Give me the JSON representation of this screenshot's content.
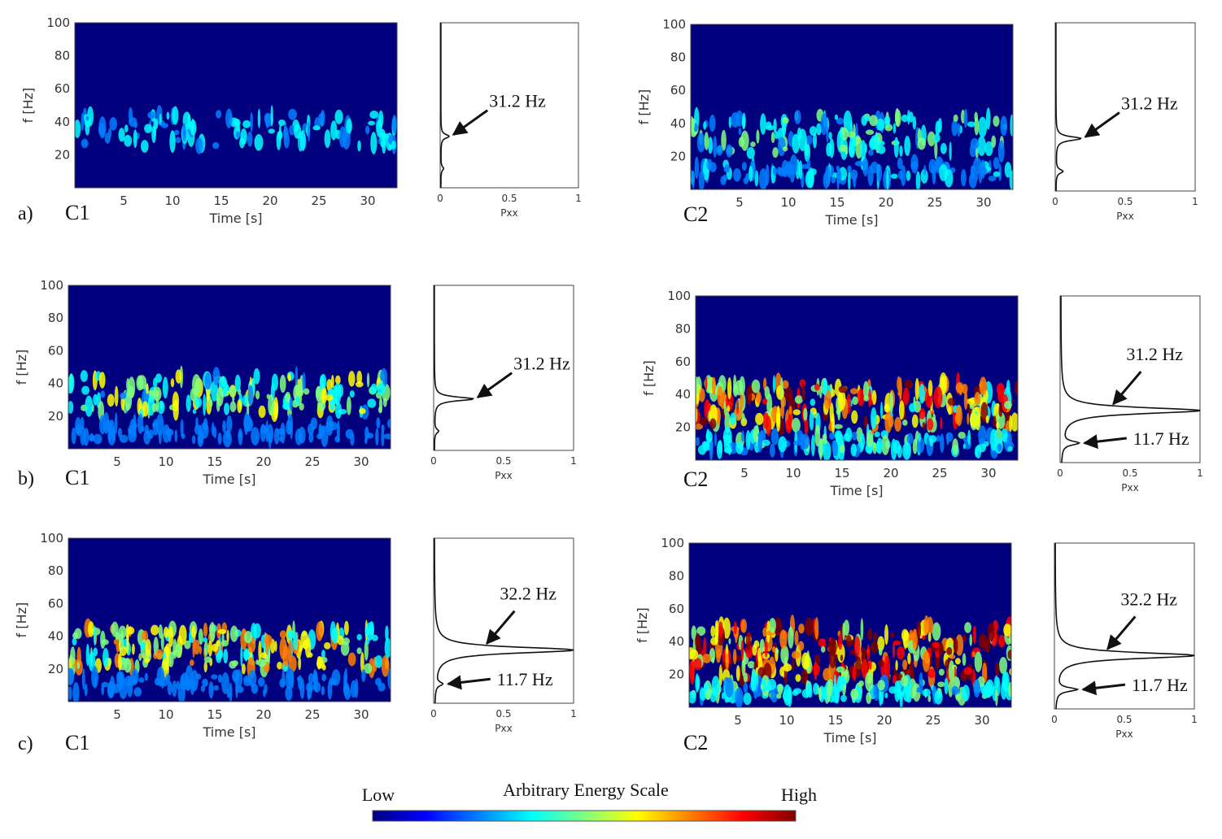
{
  "colors": {
    "spectrogram_background": "#00007f",
    "jet_scale": [
      "#00007f",
      "#0000ff",
      "#007fff",
      "#00ffff",
      "#7fff7f",
      "#ffff00",
      "#ff7f00",
      "#ff0000",
      "#7f0000"
    ]
  },
  "colorbar": {
    "title": "Arbitrary Energy Scale",
    "low_label": "Low",
    "high_label": "High"
  },
  "chart_data": [
    {
      "type": "heatmap",
      "panel": "a)",
      "channel": "C1",
      "xlabel": "Time [s]",
      "ylabel": "f [Hz]",
      "xlim": [
        0,
        33
      ],
      "ylim": [
        0,
        100
      ],
      "xticks": [
        5,
        10,
        15,
        20,
        25,
        30
      ],
      "yticks": [
        20,
        40,
        60,
        80,
        100
      ],
      "energy_bands": [
        {
          "f_low": 25,
          "f_high": 45,
          "level": 0.25
        }
      ],
      "psd": {
        "xlabel": "Pxx",
        "xlim": [
          0,
          1
        ],
        "xticks": [
          0,
          0.5,
          1
        ],
        "peaks": [
          {
            "f": 31.2,
            "pxx": 0.06,
            "label": "31.2 Hz"
          },
          {
            "f": 11.7,
            "pxx": 0.02,
            "label": ""
          }
        ]
      }
    },
    {
      "type": "heatmap",
      "panel": "",
      "channel": "C2",
      "xlabel": "Time [s]",
      "ylabel": "f [Hz]",
      "xlim": [
        0,
        33
      ],
      "ylim": [
        0,
        100
      ],
      "xticks": [
        5,
        10,
        15,
        20,
        25,
        30
      ],
      "yticks": [
        20,
        40,
        60,
        80,
        100
      ],
      "energy_bands": [
        {
          "f_low": 22,
          "f_high": 45,
          "level": 0.35
        },
        {
          "f_low": 5,
          "f_high": 16,
          "level": 0.2
        }
      ],
      "psd": {
        "xlabel": "Pxx",
        "xlim": [
          0,
          1
        ],
        "xticks": [
          0,
          0.5,
          1
        ],
        "peaks": [
          {
            "f": 31.2,
            "pxx": 0.18,
            "label": "31.2 Hz"
          },
          {
            "f": 11.7,
            "pxx": 0.05,
            "label": ""
          }
        ]
      }
    },
    {
      "type": "heatmap",
      "panel": "b)",
      "channel": "C1",
      "xlabel": "Time [s]",
      "ylabel": "f [Hz]",
      "xlim": [
        0,
        33
      ],
      "ylim": [
        0,
        100
      ],
      "xticks": [
        5,
        10,
        15,
        20,
        25,
        30
      ],
      "yticks": [
        20,
        40,
        60,
        80,
        100
      ],
      "energy_bands": [
        {
          "f_low": 22,
          "f_high": 45,
          "level": 0.45
        },
        {
          "f_low": 5,
          "f_high": 16,
          "level": 0.15
        }
      ],
      "psd": {
        "xlabel": "Pxx",
        "xlim": [
          0,
          1
        ],
        "xticks": [
          0,
          0.5,
          1
        ],
        "peaks": [
          {
            "f": 31.2,
            "pxx": 0.28,
            "label": "31.2 Hz"
          },
          {
            "f": 11.7,
            "pxx": 0.03,
            "label": ""
          }
        ]
      }
    },
    {
      "type": "heatmap",
      "panel": "",
      "channel": "C2",
      "xlabel": "Time [s]",
      "ylabel": "f [Hz]",
      "xlim": [
        0,
        33
      ],
      "ylim": [
        0,
        100
      ],
      "xticks": [
        5,
        10,
        15,
        20,
        25,
        30
      ],
      "yticks": [
        20,
        40,
        60,
        80,
        100
      ],
      "energy_bands": [
        {
          "f_low": 20,
          "f_high": 47,
          "level": 0.8
        },
        {
          "f_low": 5,
          "f_high": 16,
          "level": 0.3
        }
      ],
      "psd": {
        "xlabel": "Pxx",
        "xlim": [
          0,
          1
        ],
        "xticks": [
          0,
          0.5,
          1
        ],
        "peaks": [
          {
            "f": 31.2,
            "pxx": 1.0,
            "label": "31.2 Hz"
          },
          {
            "f": 11.7,
            "pxx": 0.12,
            "label": "11.7 Hz"
          }
        ]
      }
    },
    {
      "type": "heatmap",
      "panel": "c)",
      "channel": "C1",
      "xlabel": "Time [s]",
      "ylabel": "f [Hz]",
      "xlim": [
        0,
        33
      ],
      "ylim": [
        0,
        100
      ],
      "xticks": [
        5,
        10,
        15,
        20,
        25,
        30
      ],
      "yticks": [
        20,
        40,
        60,
        80,
        100
      ],
      "energy_bands": [
        {
          "f_low": 20,
          "f_high": 45,
          "level": 0.6
        },
        {
          "f_low": 5,
          "f_high": 16,
          "level": 0.15
        }
      ],
      "psd": {
        "xlabel": "Pxx",
        "xlim": [
          0,
          1
        ],
        "xticks": [
          0,
          0.5,
          1
        ],
        "peaks": [
          {
            "f": 32.2,
            "pxx": 1.0,
            "label": "32.2 Hz"
          },
          {
            "f": 11.7,
            "pxx": 0.05,
            "label": "11.7 Hz"
          }
        ]
      }
    },
    {
      "type": "heatmap",
      "panel": "",
      "channel": "C2",
      "xlabel": "Time [s]",
      "ylabel": "f [Hz]",
      "xlim": [
        0,
        33
      ],
      "ylim": [
        0,
        100
      ],
      "xticks": [
        5,
        10,
        15,
        20,
        25,
        30
      ],
      "yticks": [
        20,
        40,
        60,
        80,
        100
      ],
      "energy_bands": [
        {
          "f_low": 17,
          "f_high": 50,
          "level": 0.95
        },
        {
          "f_low": 5,
          "f_high": 16,
          "level": 0.35
        }
      ],
      "psd": {
        "xlabel": "Pxx",
        "xlim": [
          0,
          1
        ],
        "xticks": [
          0,
          0.5,
          1
        ],
        "peaks": [
          {
            "f": 32.2,
            "pxx": 1.0,
            "label": "32.2 Hz"
          },
          {
            "f": 11.7,
            "pxx": 0.15,
            "label": "11.7 Hz"
          }
        ]
      }
    }
  ]
}
